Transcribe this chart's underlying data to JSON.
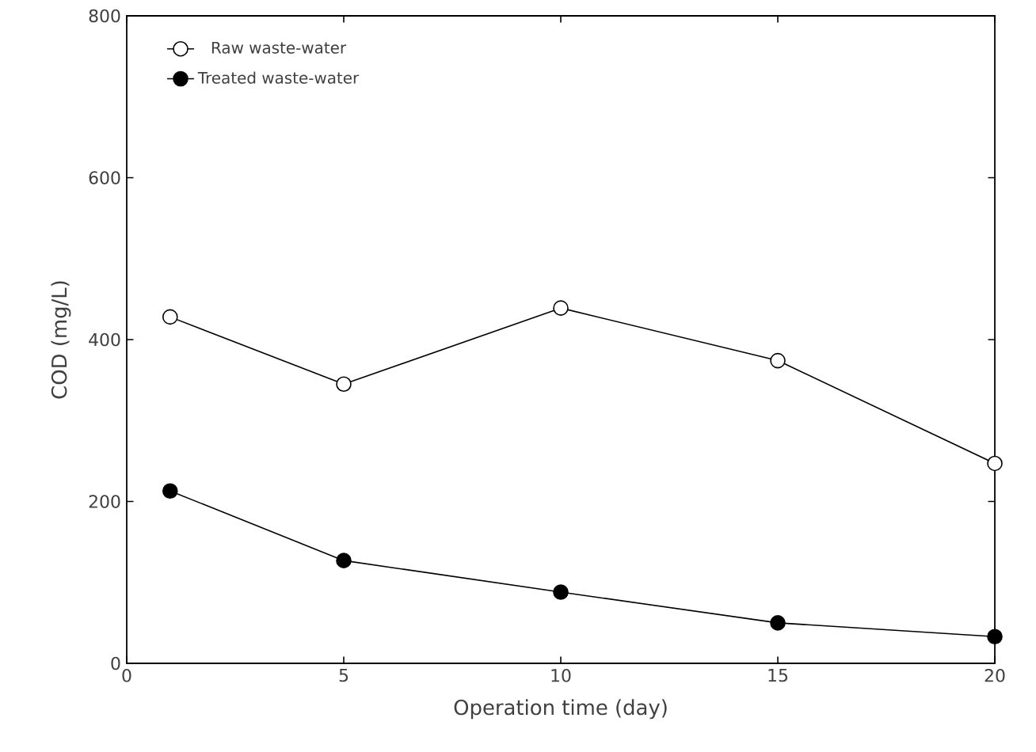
{
  "chart_data": {
    "type": "line",
    "xlabel": "Operation time (day)",
    "ylabel": "COD (mg/L)",
    "x": [
      1,
      5,
      10,
      15,
      20
    ],
    "series": [
      {
        "name": "Raw waste-water",
        "color": "#ffffff",
        "values": [
          428,
          345,
          439,
          374,
          247
        ]
      },
      {
        "name": "Treated waste-water",
        "color": "#000000",
        "values": [
          213,
          127,
          88,
          50,
          33
        ]
      }
    ],
    "xlim": [
      0,
      20
    ],
    "ylim": [
      0,
      800
    ],
    "xticks": [
      0,
      5,
      10,
      15,
      20
    ],
    "yticks": [
      0,
      200,
      400,
      600,
      800
    ],
    "grid": false,
    "legend": "top left",
    "marker": "circle",
    "line_style": "solid"
  }
}
